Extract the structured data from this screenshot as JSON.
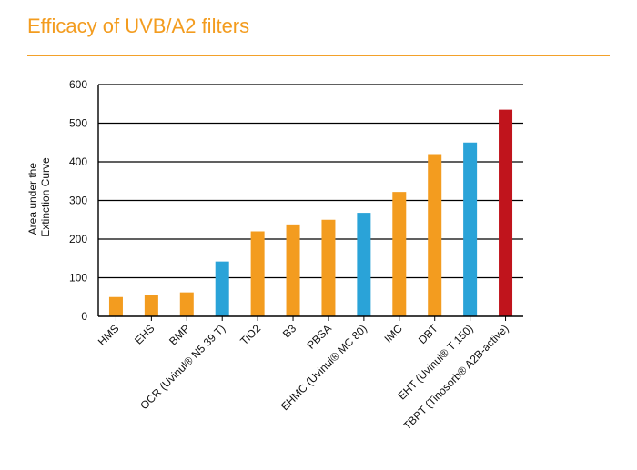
{
  "header": {
    "title": "Efficacy of UVB/A2 filters"
  },
  "colors": {
    "accent": "#f39c1f",
    "orange": "#f39c1f",
    "blue": "#2aa3d8",
    "red": "#c0141c"
  },
  "chart_data": {
    "type": "bar",
    "title": "Efficacy of UVB/A2 filters",
    "xlabel": "",
    "ylabel": [
      "Area under the",
      "Extinction Curve"
    ],
    "ylim": [
      0,
      600
    ],
    "yticks": [
      0,
      100,
      200,
      300,
      400,
      500,
      600
    ],
    "grid": true,
    "categories": [
      "HMS",
      "EHS",
      "BMP",
      "OCR (Uvinul® N5 39 T)",
      "TiO2",
      "B3",
      "PBSA",
      "EHMC (Uvinul® MC 80)",
      "IMC",
      "DBT",
      "EHT (Uvinul® T 150)",
      "TBPT (Tinosorb® A2B-active)"
    ],
    "values": [
      50,
      56,
      62,
      142,
      220,
      238,
      250,
      268,
      322,
      420,
      450,
      535
    ],
    "bar_colors": [
      "orange",
      "orange",
      "orange",
      "blue",
      "orange",
      "orange",
      "orange",
      "blue",
      "orange",
      "orange",
      "blue",
      "red"
    ]
  }
}
